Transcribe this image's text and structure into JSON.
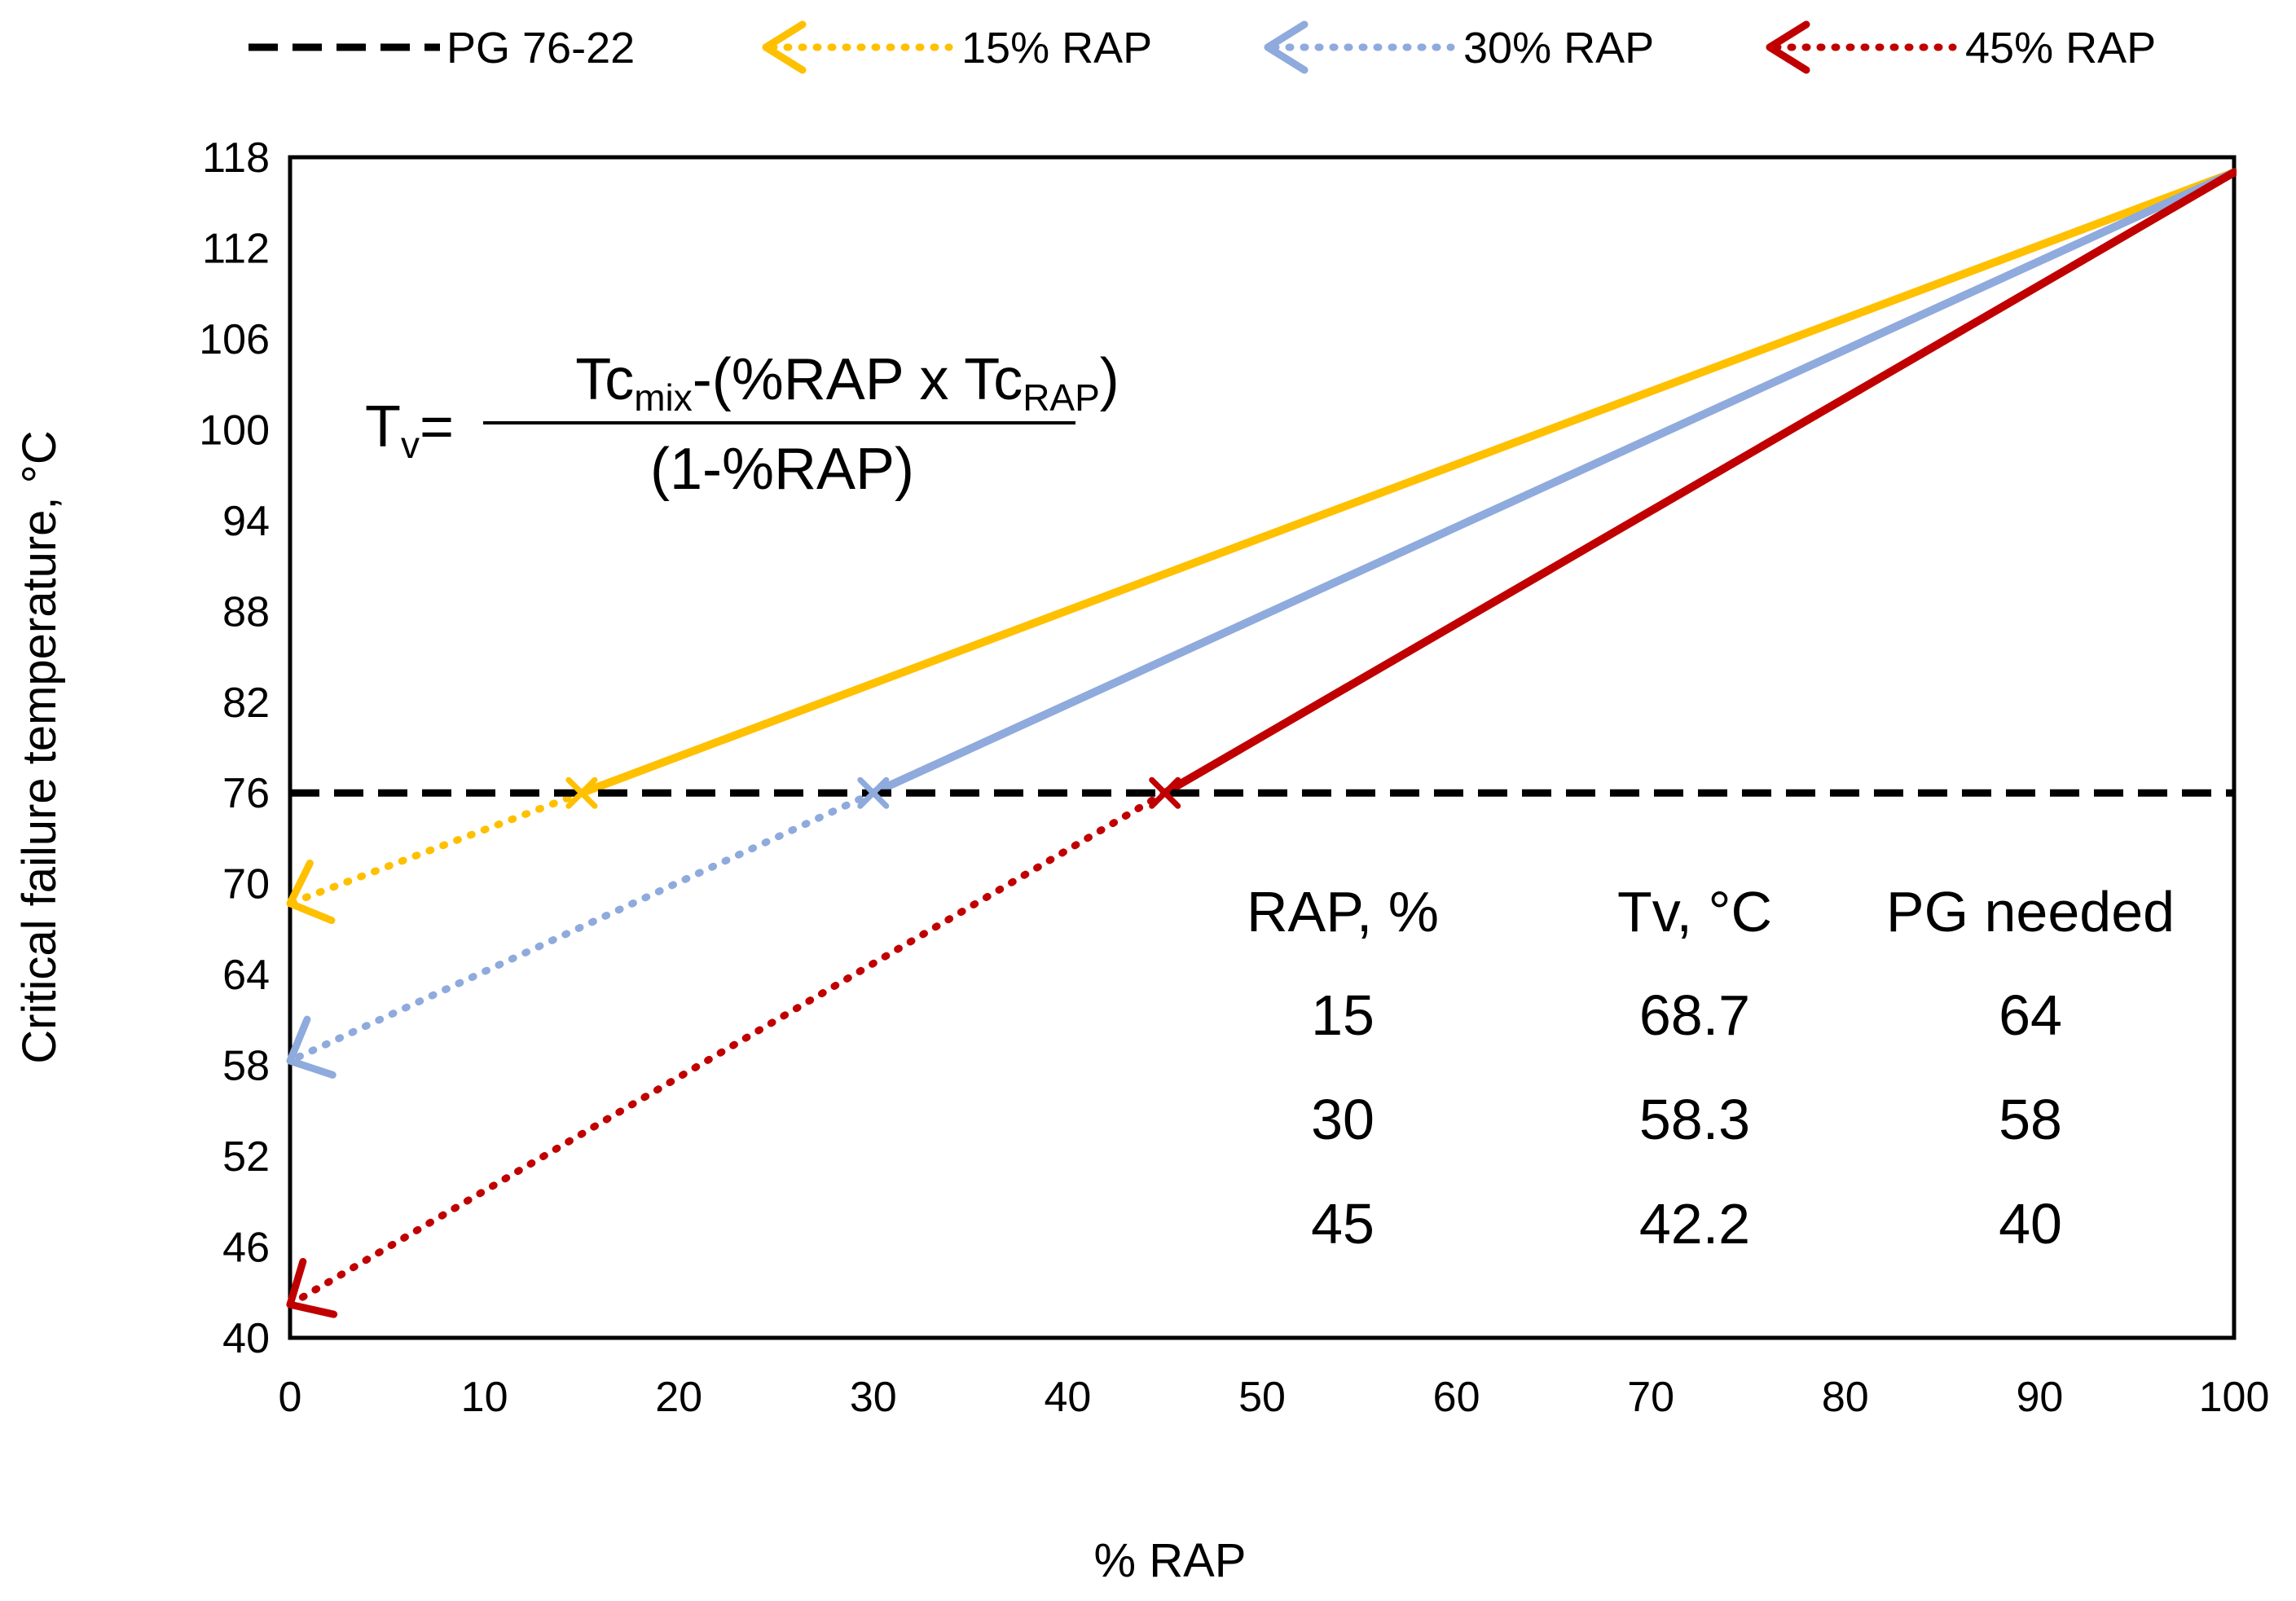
{
  "chart_data": {
    "type": "line",
    "xlabel": "% RAP",
    "ylabel": "Critical failure temperature, °C",
    "xlim": [
      0,
      100
    ],
    "ylim": [
      40,
      118
    ],
    "xticks": [
      "0",
      "10",
      "20",
      "30",
      "40",
      "50",
      "60",
      "70",
      "80",
      "90",
      "100"
    ],
    "yticks": [
      "40",
      "46",
      "52",
      "58",
      "64",
      "70",
      "76",
      "82",
      "88",
      "94",
      "100",
      "106",
      "112",
      "118"
    ],
    "legend_position": "top",
    "reference_line": {
      "name": "PG 76-22",
      "y": 76,
      "color": "#000000",
      "style": "dashed"
    },
    "series": [
      {
        "name": "15% RAP",
        "color": "#FFC000",
        "solid": {
          "x": [
            15,
            100
          ],
          "y": [
            76,
            117
          ]
        },
        "dotted": {
          "x": [
            15,
            0
          ],
          "y": [
            76,
            68.7
          ]
        },
        "marker_at": {
          "x": 15,
          "y": 76
        }
      },
      {
        "name": "30% RAP",
        "color": "#8FAADC",
        "solid": {
          "x": [
            30,
            100
          ],
          "y": [
            76,
            117
          ]
        },
        "dotted": {
          "x": [
            30,
            0
          ],
          "y": [
            76,
            58.3
          ]
        },
        "marker_at": {
          "x": 30,
          "y": 76
        }
      },
      {
        "name": "45% RAP",
        "color": "#C00000",
        "solid": {
          "x": [
            45,
            100
          ],
          "y": [
            76,
            117
          ]
        },
        "dotted": {
          "x": [
            45,
            0
          ],
          "y": [
            76,
            42.2
          ]
        },
        "marker_at": {
          "x": 45,
          "y": 76
        }
      }
    ],
    "formula": {
      "lhs_main": "T",
      "lhs_sub": "v",
      "equals": "=",
      "num_part1": "Tc",
      "num_sub1": "mix",
      "num_part2": "-(%RAP x Tc",
      "num_sub2": "RAP",
      "num_part3": ")",
      "denominator": "(1-%RAP)"
    },
    "table": {
      "headers": [
        "RAP, %",
        "Tv, °C",
        "PG needed"
      ],
      "rows": [
        [
          "15",
          "68.7",
          "64"
        ],
        [
          "30",
          "58.3",
          "58"
        ],
        [
          "45",
          "42.2",
          "40"
        ]
      ]
    }
  }
}
